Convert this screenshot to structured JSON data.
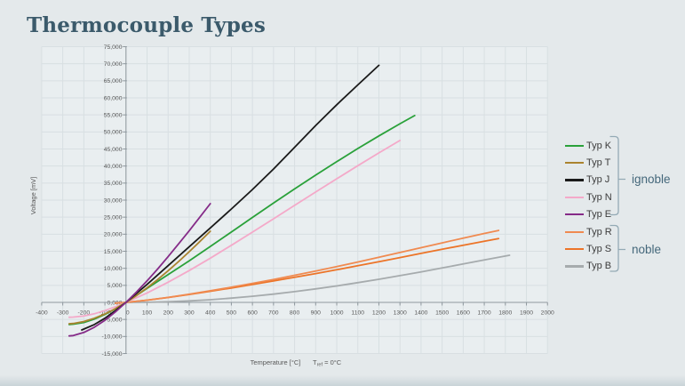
{
  "header": {
    "title": "Thermocouple Types"
  },
  "chart": {
    "theme": {
      "page_bg": "#e4e9eb",
      "plot_bg": "#e9eef0",
      "grid": "#d8dfe2",
      "axis": "#8f989e",
      "tick_text": "#595959",
      "title_color": "#3b5a6b",
      "group_label_color": "#45687b",
      "bracket_color": "#94aab5"
    }
  },
  "legend": {
    "groups": [
      {
        "label": "ignoble",
        "members": [
          "Typ K",
          "Typ T",
          "Typ J",
          "Typ N",
          "Typ E"
        ]
      },
      {
        "label": "noble",
        "members": [
          "Typ R",
          "Typ S",
          "Typ B"
        ]
      }
    ]
  },
  "chart_data": {
    "type": "line",
    "title": "Thermocouple Types",
    "xlabel": "Temperature [°C]",
    "ref_note": {
      "main": "T",
      "sub": "ref",
      "rest": " = 0°C"
    },
    "ylabel": "Voltage [mV]",
    "xlim": [
      -400,
      2000
    ],
    "ylim": [
      -15,
      75
    ],
    "grid": true,
    "legend_position": "right",
    "x_ticks": [
      -400,
      -300,
      -200,
      -100,
      0,
      100,
      200,
      300,
      400,
      500,
      600,
      700,
      800,
      900,
      1000,
      1100,
      1200,
      1300,
      1400,
      1500,
      1600,
      1700,
      1800,
      1900,
      2000
    ],
    "y_tick_values": [
      75,
      70,
      65,
      60,
      55,
      50,
      45,
      40,
      35,
      30,
      25,
      20,
      15,
      10,
      5,
      0,
      -5,
      -10,
      -15
    ],
    "y_tick_labels": [
      "75,000",
      "70,000",
      "65,000",
      "60,000",
      "55,000",
      "50,000",
      "45,000",
      "40,000",
      "35,000",
      "30,000",
      "25,000",
      "20,000",
      "15,000",
      "10,000",
      "5,000",
      "0,000",
      "-5,000",
      "-10,000",
      "-15,000"
    ],
    "draw_order": [
      "Typ B",
      "Typ S",
      "Typ R",
      "Typ N",
      "Typ K",
      "Typ T",
      "Typ J",
      "Typ E"
    ],
    "series": [
      {
        "name": "Typ K",
        "group": "ignoble",
        "color": "#2aa13a",
        "points": [
          [
            -270,
            -6.458
          ],
          [
            -250,
            -6.404
          ],
          [
            -200,
            -5.891
          ],
          [
            -150,
            -4.913
          ],
          [
            -100,
            -3.554
          ],
          [
            -50,
            -1.889
          ],
          [
            0,
            0
          ],
          [
            100,
            4.096
          ],
          [
            200,
            8.138
          ],
          [
            300,
            12.209
          ],
          [
            400,
            16.397
          ],
          [
            500,
            20.644
          ],
          [
            600,
            24.905
          ],
          [
            700,
            29.129
          ],
          [
            800,
            33.275
          ],
          [
            900,
            37.326
          ],
          [
            1000,
            41.276
          ],
          [
            1100,
            45.119
          ],
          [
            1200,
            48.838
          ],
          [
            1300,
            52.41
          ],
          [
            1370,
            54.819
          ]
        ]
      },
      {
        "name": "Typ T",
        "group": "ignoble",
        "color": "#aa832f",
        "points": [
          [
            -270,
            -6.258
          ],
          [
            -250,
            -6.181
          ],
          [
            -200,
            -5.603
          ],
          [
            -150,
            -4.648
          ],
          [
            -100,
            -3.379
          ],
          [
            -50,
            -1.819
          ],
          [
            0,
            0
          ],
          [
            50,
            2.036
          ],
          [
            100,
            4.279
          ],
          [
            150,
            6.704
          ],
          [
            200,
            9.288
          ],
          [
            250,
            12.013
          ],
          [
            300,
            14.862
          ],
          [
            350,
            17.819
          ],
          [
            400,
            20.872
          ]
        ]
      },
      {
        "name": "Typ J",
        "group": "ignoble",
        "color": "#1a1a1a",
        "points": [
          [
            -210,
            -8.095
          ],
          [
            -150,
            -6.5
          ],
          [
            -100,
            -4.633
          ],
          [
            -50,
            -2.431
          ],
          [
            0,
            0
          ],
          [
            100,
            5.269
          ],
          [
            200,
            10.779
          ],
          [
            300,
            16.327
          ],
          [
            400,
            21.848
          ],
          [
            500,
            27.393
          ],
          [
            600,
            33.102
          ],
          [
            700,
            39.132
          ],
          [
            800,
            45.494
          ],
          [
            900,
            51.877
          ],
          [
            1000,
            57.953
          ],
          [
            1100,
            63.792
          ],
          [
            1200,
            69.553
          ]
        ]
      },
      {
        "name": "Typ N",
        "group": "ignoble",
        "color": "#f4a9c9",
        "points": [
          [
            -270,
            -4.345
          ],
          [
            -250,
            -4.313
          ],
          [
            -200,
            -3.99
          ],
          [
            -150,
            -3.336
          ],
          [
            -100,
            -2.407
          ],
          [
            -50,
            -1.269
          ],
          [
            0,
            0
          ],
          [
            100,
            2.774
          ],
          [
            200,
            5.913
          ],
          [
            300,
            9.341
          ],
          [
            400,
            12.974
          ],
          [
            500,
            16.748
          ],
          [
            600,
            20.613
          ],
          [
            700,
            24.527
          ],
          [
            800,
            28.455
          ],
          [
            900,
            32.371
          ],
          [
            1000,
            36.256
          ],
          [
            1100,
            40.087
          ],
          [
            1200,
            43.846
          ],
          [
            1300,
            47.513
          ]
        ]
      },
      {
        "name": "Typ E",
        "group": "ignoble",
        "color": "#852b88",
        "points": [
          [
            -270,
            -9.835
          ],
          [
            -250,
            -9.718
          ],
          [
            -200,
            -8.825
          ],
          [
            -150,
            -7.279
          ],
          [
            -100,
            -5.237
          ],
          [
            -50,
            -2.787
          ],
          [
            0,
            0
          ],
          [
            50,
            3.048
          ],
          [
            100,
            6.319
          ],
          [
            150,
            9.789
          ],
          [
            200,
            13.421
          ],
          [
            250,
            17.181
          ],
          [
            300,
            21.036
          ],
          [
            350,
            24.964
          ],
          [
            400,
            28.946
          ]
        ]
      },
      {
        "name": "Typ R",
        "group": "noble",
        "color": "#f08a50",
        "points": [
          [
            -50,
            -0.226
          ],
          [
            0,
            0
          ],
          [
            100,
            0.647
          ],
          [
            200,
            1.469
          ],
          [
            300,
            2.401
          ],
          [
            400,
            3.408
          ],
          [
            500,
            4.471
          ],
          [
            600,
            5.583
          ],
          [
            700,
            6.743
          ],
          [
            800,
            7.95
          ],
          [
            900,
            9.205
          ],
          [
            1000,
            10.506
          ],
          [
            1100,
            11.85
          ],
          [
            1200,
            13.228
          ],
          [
            1300,
            14.629
          ],
          [
            1400,
            16.04
          ],
          [
            1500,
            17.451
          ],
          [
            1600,
            18.849
          ],
          [
            1700,
            20.222
          ],
          [
            1768,
            21.101
          ]
        ]
      },
      {
        "name": "Typ S",
        "group": "noble",
        "color": "#ec7428",
        "points": [
          [
            -50,
            -0.236
          ],
          [
            0,
            0
          ],
          [
            100,
            0.646
          ],
          [
            200,
            1.441
          ],
          [
            300,
            2.323
          ],
          [
            400,
            3.259
          ],
          [
            500,
            4.233
          ],
          [
            600,
            5.239
          ],
          [
            700,
            6.275
          ],
          [
            800,
            7.345
          ],
          [
            900,
            8.449
          ],
          [
            1000,
            9.587
          ],
          [
            1100,
            10.757
          ],
          [
            1200,
            11.951
          ],
          [
            1300,
            13.159
          ],
          [
            1400,
            14.373
          ],
          [
            1500,
            15.582
          ],
          [
            1600,
            16.777
          ],
          [
            1700,
            17.947
          ],
          [
            1768,
            18.693
          ]
        ]
      },
      {
        "name": "Typ B",
        "group": "noble",
        "color": "#a6abad",
        "points": [
          [
            0,
            0
          ],
          [
            100,
            0.033
          ],
          [
            200,
            0.178
          ],
          [
            300,
            0.431
          ],
          [
            400,
            0.787
          ],
          [
            500,
            1.242
          ],
          [
            600,
            1.792
          ],
          [
            700,
            2.431
          ],
          [
            800,
            3.154
          ],
          [
            900,
            3.957
          ],
          [
            1000,
            4.834
          ],
          [
            1100,
            5.78
          ],
          [
            1200,
            6.786
          ],
          [
            1300,
            7.848
          ],
          [
            1400,
            8.956
          ],
          [
            1500,
            10.099
          ],
          [
            1600,
            11.263
          ],
          [
            1700,
            12.433
          ],
          [
            1820,
            13.82
          ]
        ]
      }
    ]
  }
}
